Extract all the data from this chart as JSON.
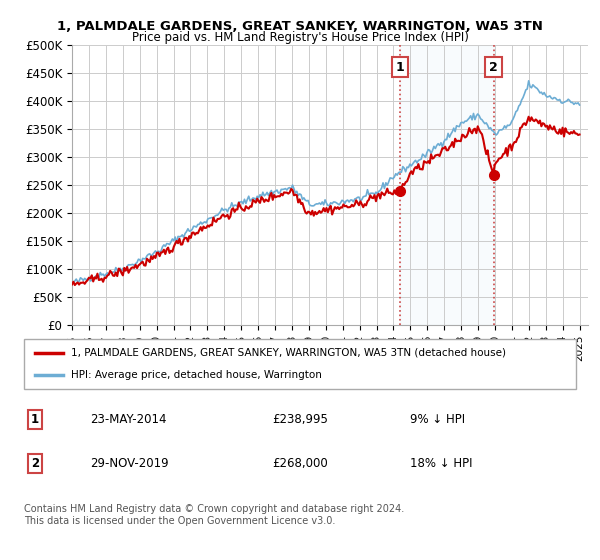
{
  "title": "1, PALMDALE GARDENS, GREAT SANKEY, WARRINGTON, WA5 3TN",
  "subtitle": "Price paid vs. HM Land Registry's House Price Index (HPI)",
  "xlabel": "",
  "ylabel": "",
  "ylim": [
    0,
    500000
  ],
  "yticks": [
    0,
    50000,
    100000,
    150000,
    200000,
    250000,
    300000,
    350000,
    400000,
    450000,
    500000
  ],
  "ytick_labels": [
    "£0",
    "£50K",
    "£100K",
    "£150K",
    "£200K",
    "£250K",
    "£300K",
    "£350K",
    "£400K",
    "£450K",
    "£500K"
  ],
  "xlim_start": 1995.0,
  "xlim_end": 2025.5,
  "xtick_years": [
    1995,
    1996,
    1997,
    1998,
    1999,
    2000,
    2001,
    2002,
    2003,
    2004,
    2005,
    2006,
    2007,
    2008,
    2009,
    2010,
    2011,
    2012,
    2013,
    2014,
    2015,
    2016,
    2017,
    2018,
    2019,
    2020,
    2021,
    2022,
    2023,
    2024,
    2025
  ],
  "hpi_color": "#6dadd4",
  "house_color": "#cc0000",
  "marker1_x": 2014.39,
  "marker1_y": 238995,
  "marker1_label": "1",
  "marker2_x": 2019.92,
  "marker2_y": 268000,
  "marker2_label": "2",
  "legend_house": "1, PALMDALE GARDENS, GREAT SANKEY, WARRINGTON, WA5 3TN (detached house)",
  "legend_hpi": "HPI: Average price, detached house, Warrington",
  "table_row1_num": "1",
  "table_row1_date": "23-MAY-2014",
  "table_row1_price": "£238,995",
  "table_row1_hpi": "9% ↓ HPI",
  "table_row2_num": "2",
  "table_row2_date": "29-NOV-2019",
  "table_row2_price": "£268,000",
  "table_row2_hpi": "18% ↓ HPI",
  "footnote": "Contains HM Land Registry data © Crown copyright and database right 2024.\nThis data is licensed under the Open Government Licence v3.0.",
  "background_color": "#ffffff",
  "grid_color": "#cccccc"
}
